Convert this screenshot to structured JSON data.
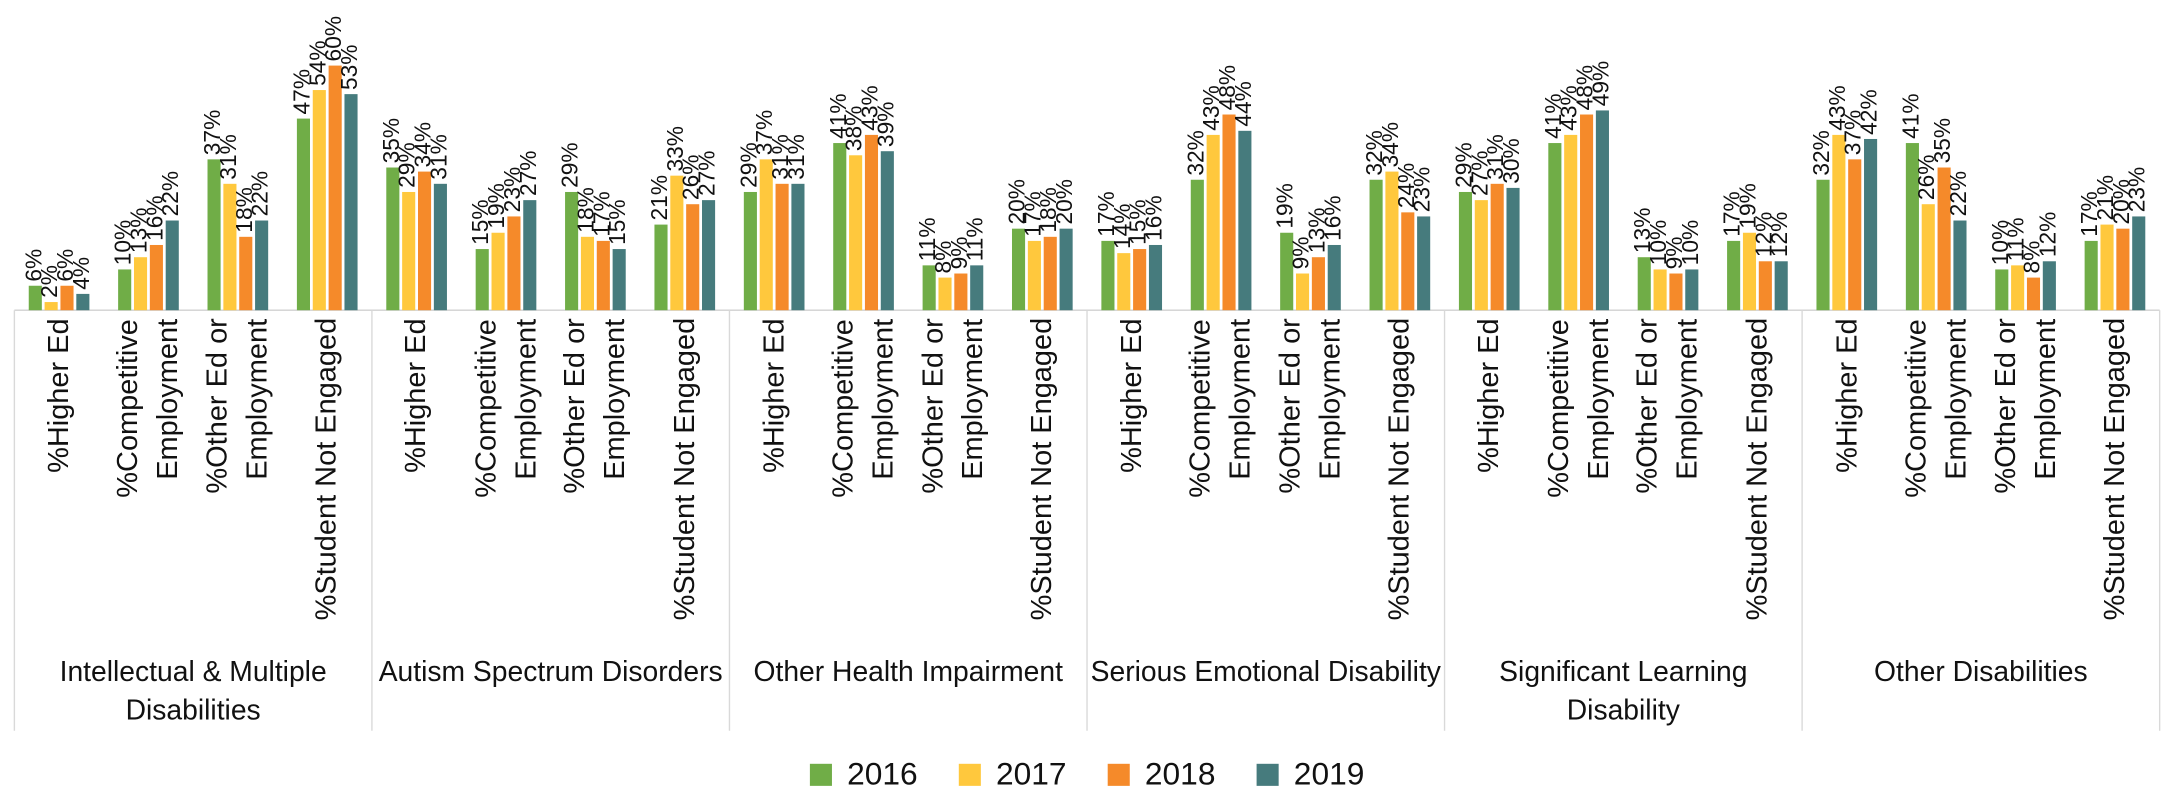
{
  "chart_data": {
    "type": "bar",
    "groups": [
      "Intellectual & Multiple Disabilities",
      "Autism Spectrum Disorders",
      "Other Health Impairment",
      "Serious Emotional Disability",
      "Significant Learning Disability",
      "Other Disabilities"
    ],
    "categories": [
      "%Higher Ed",
      "%Competitive Employment",
      "%Other Ed or Employment",
      "%Student Not Engaged",
      "%Higher Ed",
      "%Competitive Employment",
      "%Other Ed or Employment",
      "%Student Not Engaged",
      "%Higher Ed",
      "%Competitive Employment",
      "%Other Ed or Employment",
      "%Student Not Engaged",
      "%Higher Ed",
      "%Competitive Employment",
      "%Other Ed or Employment",
      "%Student Not Engaged",
      "%Higher Ed",
      "%Competitive Employment",
      "%Other Ed or Employment",
      "%Student Not Engaged",
      "%Higher Ed",
      "%Competitive Employment",
      "%Other Ed or Employment",
      "%Student Not Engaged"
    ],
    "series": [
      {
        "name": "2016",
        "color": "#70ad47",
        "values": [
          6,
          10,
          37,
          47,
          35,
          15,
          29,
          21,
          29,
          41,
          11,
          20,
          17,
          32,
          19,
          32,
          29,
          41,
          13,
          17,
          32,
          41,
          10,
          17
        ],
        "value_labels": [
          "6%",
          "10%",
          "37%",
          "47%",
          "35%",
          "15%",
          "29%",
          "21%",
          "29%",
          "41%",
          "11%",
          "20%",
          "17%",
          "32%",
          "19%",
          "32%",
          "29%",
          "41%",
          "13%",
          "17%",
          "32%",
          "41%",
          "10%",
          "17%"
        ]
      },
      {
        "name": "2017",
        "color": "#ffc83d",
        "values": [
          2,
          13,
          31,
          54,
          29,
          19,
          18,
          33,
          37,
          38,
          8,
          17,
          14,
          43,
          9,
          34,
          27,
          43,
          10,
          19,
          43,
          26,
          11,
          21
        ],
        "value_labels": [
          "2%",
          "13%",
          "31%",
          "54%",
          "29%",
          "19%",
          "18%",
          "33%",
          "37%",
          "38%",
          "8%",
          "17%",
          "14%",
          "43%",
          "9%",
          "34%",
          "27%",
          "43%",
          "10%",
          "19%",
          "43%",
          "26%",
          "11%",
          "21%"
        ]
      },
      {
        "name": "2018",
        "color": "#f58a2a",
        "values": [
          6,
          16,
          18,
          60,
          34,
          23,
          17,
          26,
          31,
          43,
          9,
          18,
          15,
          48,
          13,
          24,
          31,
          48,
          9,
          12,
          37,
          35,
          8,
          20
        ],
        "value_labels": [
          "6%",
          "16%",
          "18%",
          "60%",
          "34%",
          "23%",
          "17%",
          "26%",
          "31%",
          "43%",
          "9%",
          "18%",
          "15%",
          "48%",
          "13%",
          "24%",
          "31%",
          "48%",
          "9%",
          "12%",
          "37%",
          "35%",
          "8%",
          "20%"
        ]
      },
      {
        "name": "2019",
        "color": "#467b7d",
        "values": [
          4,
          22,
          22,
          53,
          31,
          27,
          15,
          27,
          31,
          39,
          11,
          20,
          16,
          44,
          16,
          23,
          30,
          49,
          10,
          12,
          42,
          22,
          12,
          23
        ],
        "value_labels": [
          "4%",
          "22%",
          "22%",
          "53%",
          "31%",
          "27%",
          "15%",
          "27%",
          "31%",
          "39%",
          "11%",
          "20%",
          "16%",
          "44%",
          "16%",
          "23%",
          "30%",
          "49%",
          "10%",
          "12%",
          "42%",
          "22%",
          "12%",
          "23%"
        ]
      }
    ],
    "ylim": [
      0,
      70
    ]
  }
}
